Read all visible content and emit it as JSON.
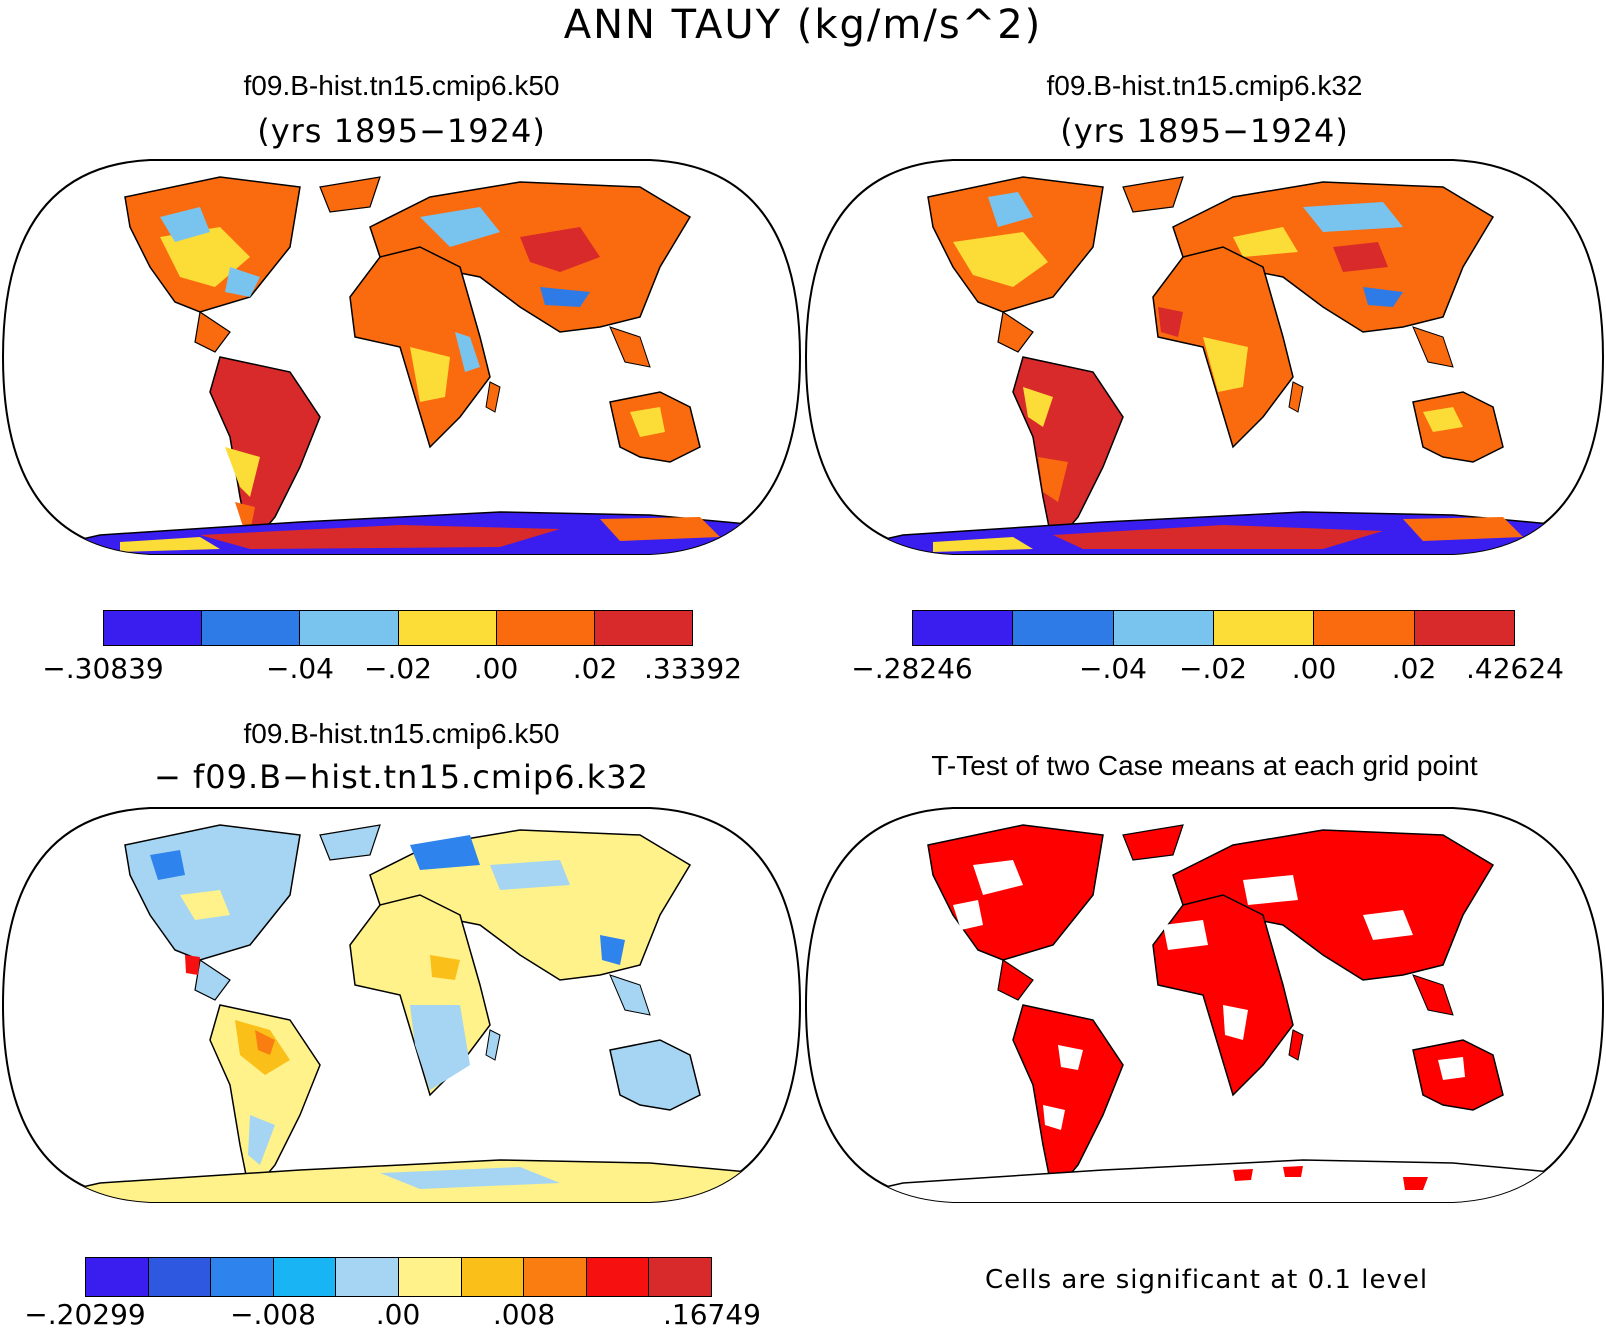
{
  "main_title": "ANN TAUY (kg/m/s^2)",
  "panels": {
    "top_left": {
      "title": "f09.B-hist.tn15.cmip6.k50",
      "subtitle": "(yrs 1895−1924)"
    },
    "top_right": {
      "title": "f09.B-hist.tn15.cmip6.k32",
      "subtitle": "(yrs 1895−1924)"
    },
    "bottom_left": {
      "title": "f09.B-hist.tn15.cmip6.k50",
      "subtitle": "− f09.B−hist.tn15.cmip6.k32"
    },
    "bottom_right": {
      "title": "T-Test of two Case means at each grid point",
      "footnote": "Cells are significant at 0.1 level"
    }
  },
  "colorbars": {
    "top_left": {
      "colors": [
        "#3a1ef0",
        "#2e7be8",
        "#79c4ee",
        "#fcdc36",
        "#fa6a0e",
        "#d8292b"
      ],
      "ticks": [
        "−.30839",
        "−.04",
        "−.02",
        ".00",
        ".02",
        ".33392"
      ]
    },
    "top_right": {
      "colors": [
        "#3a1ef0",
        "#2e7be8",
        "#79c4ee",
        "#fcdc36",
        "#fa6a0e",
        "#d8292b"
      ],
      "ticks": [
        "−.28246",
        "−.04",
        "−.02",
        ".00",
        ".02",
        ".42624"
      ]
    },
    "bottom_left": {
      "colors": [
        "#3a1ef0",
        "#2f58e0",
        "#2e84ec",
        "#19b4f3",
        "#a5d5f2",
        "#fff28a",
        "#fbbf1a",
        "#fa7d12",
        "#f61110",
        "#d8292b"
      ],
      "ticks": [
        "−.20299",
        "−.008",
        ".00",
        ".008",
        ".16749"
      ]
    }
  }
}
